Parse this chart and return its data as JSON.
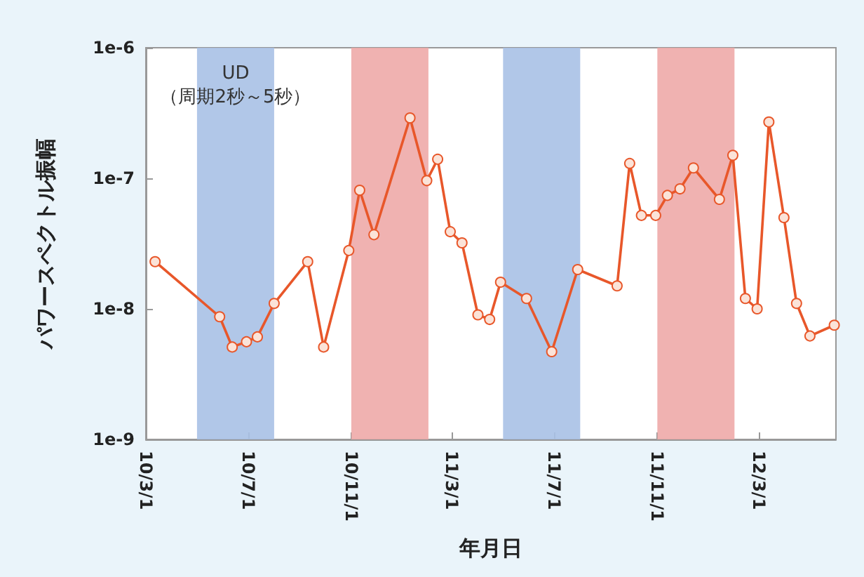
{
  "chart_data": {
    "type": "line",
    "xlabel": "年月日",
    "ylabel": "パワースペクトル振幅",
    "log": "y",
    "marker": "circle",
    "line_style": "solid",
    "xlim": [
      "2010-03-01",
      "2012-06-01"
    ],
    "xticks": [
      {
        "value": "2010-03-01",
        "label": "10/3/1"
      },
      {
        "value": "2010-07-01",
        "label": "10/7/1"
      },
      {
        "value": "2010-11-01",
        "label": "10/11/1"
      },
      {
        "value": "2011-03-01",
        "label": "11/3/1"
      },
      {
        "value": "2011-07-01",
        "label": "11/7/1"
      },
      {
        "value": "2011-11-01",
        "label": "11/11/1"
      },
      {
        "value": "2012-03-01",
        "label": "12/3/1"
      }
    ],
    "ylim": [
      1e-09,
      1e-06
    ],
    "yticks": [
      {
        "value": 1e-09,
        "label": "1e-9"
      },
      {
        "value": 1e-08,
        "label": "1e-8"
      },
      {
        "value": 1e-07,
        "label": "1e-7"
      },
      {
        "value": 1e-06,
        "label": "1e-6"
      }
    ],
    "bands": [
      {
        "axis": "x",
        "from": "2010-05-01",
        "to": "2010-08-01",
        "label": "UD\n（周期2秒～5秒）",
        "color": "#a9c1e6"
      },
      {
        "axis": "x",
        "from": "2010-11-01",
        "to": "2011-02-01",
        "color": "#eeaaa8"
      },
      {
        "axis": "x",
        "from": "2011-05-01",
        "to": "2011-08-01",
        "color": "#a9c1e6"
      },
      {
        "axis": "x",
        "from": "2011-11-01",
        "to": "2012-02-01",
        "color": "#eeaaa8"
      }
    ],
    "x": [
      "2010-03-12",
      "2010-05-28",
      "2010-06-12",
      "2010-06-29",
      "2010-07-12",
      "2010-08-01",
      "2010-09-10",
      "2010-09-29",
      "2010-10-29",
      "2010-11-11",
      "2010-11-28",
      "2011-01-10",
      "2011-01-30",
      "2011-02-12",
      "2011-02-27",
      "2011-03-13",
      "2011-04-01",
      "2011-04-15",
      "2011-04-28",
      "2011-05-29",
      "2011-06-28",
      "2011-07-29",
      "2011-09-14",
      "2011-09-29",
      "2011-10-13",
      "2011-10-30",
      "2011-11-13",
      "2011-11-28",
      "2011-12-14",
      "2012-01-14",
      "2012-01-30",
      "2012-02-14",
      "2012-02-28",
      "2012-03-13",
      "2012-03-31",
      "2012-04-15",
      "2012-05-01",
      "2012-05-30"
    ],
    "series": [
      {
        "color": "#e8572a",
        "values": [
          2.3e-08,
          8.7e-09,
          5.1e-09,
          5.6e-09,
          6.1e-09,
          1.1e-08,
          2.3e-08,
          5.1e-09,
          2.8e-08,
          8.1e-08,
          3.7e-08,
          2.9e-07,
          9.6e-08,
          1.4e-07,
          3.9e-08,
          3.2e-08,
          9e-09,
          8.3e-09,
          1.6e-08,
          1.2e-08,
          4.7e-09,
          2e-08,
          1.5e-08,
          1.3e-07,
          5.2e-08,
          5.2e-08,
          7.4e-08,
          8.3e-08,
          1.2e-07,
          6.9e-08,
          1.5e-07,
          1.2e-08,
          1e-08,
          2.7e-07,
          5e-08,
          1.1e-08,
          6.2e-09,
          7.5e-09
        ]
      }
    ]
  }
}
